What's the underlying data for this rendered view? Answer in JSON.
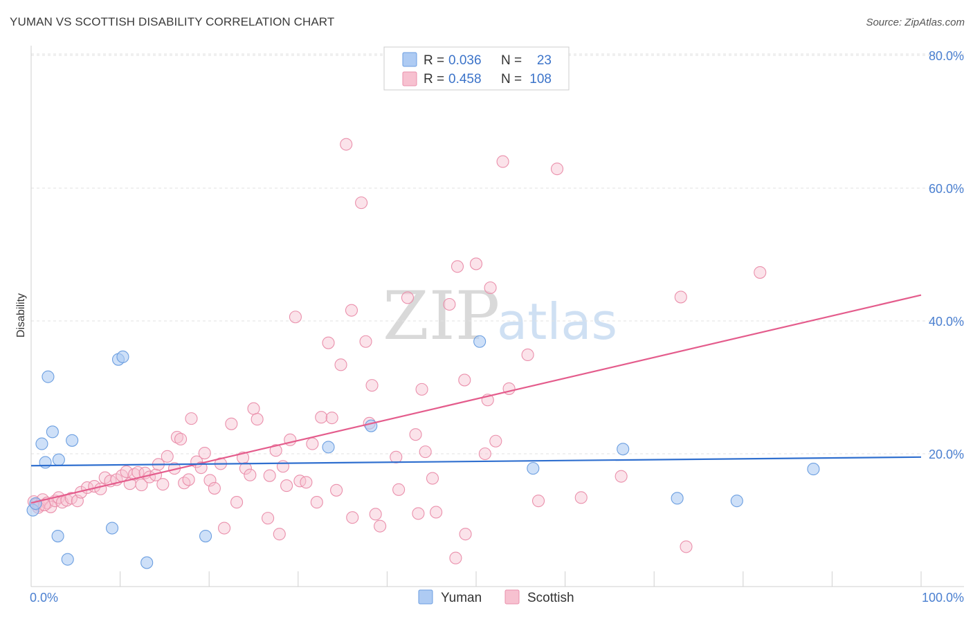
{
  "title": "YUMAN VS SCOTTISH DISABILITY CORRELATION CHART",
  "source": "Source: ZipAtlas.com",
  "colors": {
    "yuman_fill": "#aecbf3",
    "yuman_stroke": "#6b9ee0",
    "yuman_line": "#2f6fcf",
    "scottish_fill": "#f7c1d0",
    "scottish_stroke": "#ea8fab",
    "scottish_line": "#e45c8c",
    "tick_label": "#4a7fd0",
    "grid": "#e2e2e2"
  },
  "legend": {
    "r_label": "R =",
    "n_label": "N =",
    "yuman_r": "0.036",
    "yuman_n": "23",
    "scottish_r": "0.458",
    "scottish_n": "108"
  },
  "watermark": {
    "zip": "ZIP",
    "atlas": "atlas"
  },
  "chart_data": {
    "type": "scatter",
    "title": "YUMAN VS SCOTTISH DISABILITY CORRELATION CHART",
    "xlabel": "",
    "ylabel": "Disability",
    "xlim": [
      0,
      100
    ],
    "ylim": [
      0,
      80
    ],
    "x_tick_labels": [
      "0.0%",
      "100.0%"
    ],
    "y_ticks": [
      20,
      40,
      60,
      80
    ],
    "y_tick_labels": [
      "20.0%",
      "40.0%",
      "60.0%",
      "80.0%"
    ],
    "grid": true,
    "legend_position": "top-center",
    "series": [
      {
        "name": "Yuman",
        "trend": {
          "x": [
            0,
            100
          ],
          "y": [
            18.2,
            19.5
          ]
        },
        "points": [
          [
            0.2,
            11.5
          ],
          [
            0.5,
            12.5
          ],
          [
            1.2,
            21.5
          ],
          [
            1.6,
            18.7
          ],
          [
            1.9,
            31.6
          ],
          [
            2.4,
            23.3
          ],
          [
            3.1,
            19.1
          ],
          [
            3.0,
            7.6
          ],
          [
            4.1,
            4.1
          ],
          [
            4.6,
            22.0
          ],
          [
            9.1,
            8.8
          ],
          [
            9.8,
            34.2
          ],
          [
            10.3,
            34.6
          ],
          [
            13.0,
            3.6
          ],
          [
            19.6,
            7.6
          ],
          [
            33.4,
            21.0
          ],
          [
            38.2,
            24.2
          ],
          [
            50.4,
            36.9
          ],
          [
            56.4,
            17.8
          ],
          [
            66.5,
            20.7
          ],
          [
            72.6,
            13.3
          ],
          [
            79.3,
            12.9
          ],
          [
            87.9,
            17.7
          ]
        ]
      },
      {
        "name": "Scottish",
        "trend": {
          "x": [
            0,
            100
          ],
          "y": [
            12.6,
            43.9
          ]
        },
        "points": [
          [
            0.3,
            12.8
          ],
          [
            0.6,
            12.4
          ],
          [
            0.9,
            12.2
          ],
          [
            1.3,
            13.1
          ],
          [
            1.8,
            12.6
          ],
          [
            2.2,
            12.0
          ],
          [
            2.7,
            12.9
          ],
          [
            3.1,
            13.4
          ],
          [
            3.5,
            12.7
          ],
          [
            4.0,
            13.0
          ],
          [
            4.5,
            13.3
          ],
          [
            5.2,
            12.9
          ],
          [
            5.6,
            14.2
          ],
          [
            6.3,
            14.9
          ],
          [
            7.1,
            15.1
          ],
          [
            7.8,
            14.7
          ],
          [
            8.3,
            16.4
          ],
          [
            8.9,
            15.9
          ],
          [
            9.6,
            16.1
          ],
          [
            10.2,
            16.7
          ],
          [
            10.7,
            17.3
          ],
          [
            11.1,
            15.5
          ],
          [
            11.6,
            16.9
          ],
          [
            12.0,
            17.2
          ],
          [
            12.4,
            15.3
          ],
          [
            12.8,
            17.1
          ],
          [
            13.3,
            16.5
          ],
          [
            14.0,
            16.8
          ],
          [
            14.3,
            18.4
          ],
          [
            14.8,
            15.4
          ],
          [
            15.3,
            19.6
          ],
          [
            16.1,
            17.8
          ],
          [
            16.4,
            22.5
          ],
          [
            16.8,
            22.2
          ],
          [
            17.2,
            15.6
          ],
          [
            17.7,
            16.1
          ],
          [
            18.0,
            25.3
          ],
          [
            18.6,
            18.8
          ],
          [
            19.1,
            17.9
          ],
          [
            19.5,
            20.1
          ],
          [
            20.1,
            16.0
          ],
          [
            20.6,
            14.8
          ],
          [
            21.3,
            18.5
          ],
          [
            21.7,
            8.8
          ],
          [
            22.5,
            24.5
          ],
          [
            23.1,
            12.7
          ],
          [
            23.8,
            19.4
          ],
          [
            24.1,
            17.8
          ],
          [
            24.6,
            16.8
          ],
          [
            25.0,
            26.8
          ],
          [
            25.4,
            25.2
          ],
          [
            26.6,
            10.3
          ],
          [
            26.8,
            16.7
          ],
          [
            27.5,
            20.5
          ],
          [
            27.9,
            7.9
          ],
          [
            28.3,
            18.1
          ],
          [
            28.7,
            15.2
          ],
          [
            29.1,
            22.1
          ],
          [
            29.7,
            40.6
          ],
          [
            30.2,
            15.9
          ],
          [
            30.9,
            15.7
          ],
          [
            31.6,
            21.5
          ],
          [
            32.1,
            12.7
          ],
          [
            32.6,
            25.5
          ],
          [
            33.4,
            36.7
          ],
          [
            33.8,
            25.4
          ],
          [
            34.3,
            14.5
          ],
          [
            34.8,
            33.4
          ],
          [
            35.4,
            66.6
          ],
          [
            36.1,
            10.4
          ],
          [
            36.0,
            41.6
          ],
          [
            37.1,
            57.8
          ],
          [
            37.6,
            36.9
          ],
          [
            38.0,
            24.6
          ],
          [
            38.3,
            30.3
          ],
          [
            38.7,
            10.9
          ],
          [
            39.2,
            9.1
          ],
          [
            41.0,
            19.5
          ],
          [
            41.3,
            14.6
          ],
          [
            42.3,
            43.5
          ],
          [
            43.2,
            22.9
          ],
          [
            43.5,
            11.0
          ],
          [
            43.9,
            29.7
          ],
          [
            44.3,
            20.3
          ],
          [
            45.1,
            16.3
          ],
          [
            45.5,
            11.2
          ],
          [
            47.0,
            42.5
          ],
          [
            47.7,
            4.3
          ],
          [
            47.9,
            48.2
          ],
          [
            48.7,
            31.1
          ],
          [
            48.8,
            7.9
          ],
          [
            50.0,
            48.6
          ],
          [
            51.0,
            20.0
          ],
          [
            51.3,
            28.1
          ],
          [
            51.6,
            45.0
          ],
          [
            52.2,
            21.9
          ],
          [
            53.0,
            64.0
          ],
          [
            53.7,
            29.8
          ],
          [
            55.8,
            34.9
          ],
          [
            57.0,
            12.9
          ],
          [
            59.1,
            62.9
          ],
          [
            61.8,
            13.4
          ],
          [
            66.3,
            16.6
          ],
          [
            73.0,
            43.6
          ],
          [
            73.6,
            6.0
          ],
          [
            81.9,
            47.3
          ],
          [
            0.8,
            11.9
          ],
          [
            1.5,
            12.3
          ]
        ]
      }
    ]
  },
  "bottom_legend": [
    {
      "label": "Yuman"
    },
    {
      "label": "Scottish"
    }
  ]
}
